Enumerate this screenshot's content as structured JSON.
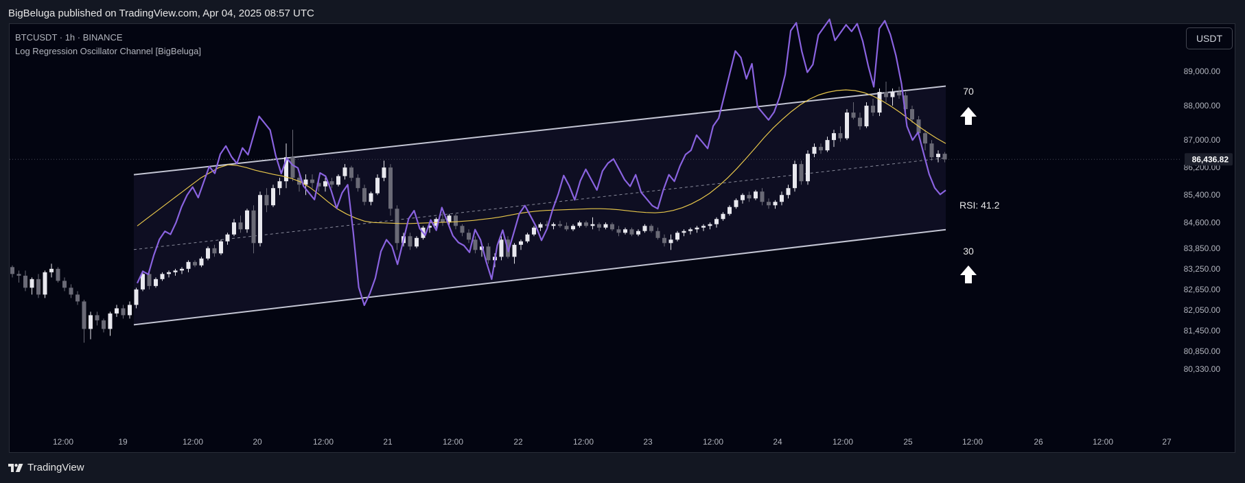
{
  "header": {
    "published": "BigBeluga published on TradingView.com, Apr 04, 2025 08:57 UTC"
  },
  "legend": {
    "symbol": "BTCUSDT · 1h · BINANCE",
    "indicator": "Log Regression Oscillator Channel [BigBeluga]"
  },
  "currency_button": "USDT",
  "footer": {
    "brand": "TradingView"
  },
  "colors": {
    "background": "#030511",
    "channel_fill": "#0f1025",
    "channel_line": "#c4c6d4",
    "rsi_line": "#8a63e0",
    "ma_line": "#e9c84b",
    "candle_up": "#e8e8ee",
    "candle_down": "#6a6a76",
    "price_label_bg": "#1c1f2b"
  },
  "chart_data": {
    "type": "candlestick",
    "symbol": "BTCUSDT",
    "interval": "1h",
    "exchange": "BINANCE",
    "ylim": [
      80000,
      89600
    ],
    "y_ticks": [
      89000,
      88000,
      87000,
      86200,
      85400,
      84600,
      83850,
      83250,
      82650,
      82050,
      81450,
      80850,
      80330
    ],
    "y_tick_labels": [
      "89,000.00",
      "88,000.00",
      "87,000.00",
      "86,200.00",
      "85,400.00",
      "84,600.00",
      "83,850.00",
      "83,250.00",
      "82,650.00",
      "82,050.00",
      "81,450.00",
      "80,850.00",
      "80,330.00"
    ],
    "last_price": 86436.82,
    "last_price_label": "86,436.82",
    "x_ticks": [
      "12:00",
      "19",
      "12:00",
      "20",
      "12:00",
      "21",
      "12:00",
      "22",
      "12:00",
      "23",
      "12:00",
      "24",
      "12:00",
      "25",
      "12:00",
      "26",
      "12:00",
      "27"
    ],
    "channel": {
      "upper": {
        "start": 85990,
        "end": 88570
      },
      "lower": {
        "start": 81620,
        "end": 84390
      },
      "mid": {
        "start": 83810,
        "end": 86480
      }
    },
    "oscillator_labels": {
      "upper": "70",
      "lower": "30",
      "rsi_label": "RSI:",
      "rsi_value": "41.2"
    },
    "candles": [
      {
        "o": 83300,
        "h": 83350,
        "l": 83000,
        "c": 83100
      },
      {
        "o": 83100,
        "h": 83200,
        "l": 82850,
        "c": 83050
      },
      {
        "o": 83050,
        "h": 83200,
        "l": 82600,
        "c": 82700
      },
      {
        "o": 82700,
        "h": 83000,
        "l": 82500,
        "c": 82950
      },
      {
        "o": 82950,
        "h": 83100,
        "l": 82400,
        "c": 82500
      },
      {
        "o": 82500,
        "h": 83200,
        "l": 82400,
        "c": 83150
      },
      {
        "o": 83150,
        "h": 83400,
        "l": 83000,
        "c": 83250
      },
      {
        "o": 83250,
        "h": 83300,
        "l": 82850,
        "c": 82900
      },
      {
        "o": 82900,
        "h": 83000,
        "l": 82600,
        "c": 82700
      },
      {
        "o": 82700,
        "h": 82800,
        "l": 82400,
        "c": 82500
      },
      {
        "o": 82500,
        "h": 82600,
        "l": 82200,
        "c": 82300
      },
      {
        "o": 82300,
        "h": 82350,
        "l": 81100,
        "c": 81500
      },
      {
        "o": 81500,
        "h": 82000,
        "l": 81200,
        "c": 81900
      },
      {
        "o": 81900,
        "h": 82000,
        "l": 81600,
        "c": 81750
      },
      {
        "o": 81750,
        "h": 81800,
        "l": 81400,
        "c": 81500
      },
      {
        "o": 81500,
        "h": 82000,
        "l": 81300,
        "c": 81950
      },
      {
        "o": 81950,
        "h": 82200,
        "l": 81850,
        "c": 82100
      },
      {
        "o": 82100,
        "h": 82200,
        "l": 81800,
        "c": 81900
      },
      {
        "o": 81900,
        "h": 82300,
        "l": 81800,
        "c": 82200
      },
      {
        "o": 82200,
        "h": 82700,
        "l": 82100,
        "c": 82650
      },
      {
        "o": 82650,
        "h": 83200,
        "l": 82600,
        "c": 83100
      },
      {
        "o": 83100,
        "h": 83150,
        "l": 82650,
        "c": 82750
      },
      {
        "o": 82750,
        "h": 83000,
        "l": 82700,
        "c": 82950
      },
      {
        "o": 82950,
        "h": 83150,
        "l": 82900,
        "c": 83100
      },
      {
        "o": 83100,
        "h": 83200,
        "l": 83000,
        "c": 83150
      },
      {
        "o": 83150,
        "h": 83250,
        "l": 83050,
        "c": 83200
      },
      {
        "o": 83200,
        "h": 83300,
        "l": 83100,
        "c": 83250
      },
      {
        "o": 83250,
        "h": 83500,
        "l": 83150,
        "c": 83450
      },
      {
        "o": 83450,
        "h": 83500,
        "l": 83300,
        "c": 83350
      },
      {
        "o": 83350,
        "h": 83600,
        "l": 83300,
        "c": 83550
      },
      {
        "o": 83550,
        "h": 83900,
        "l": 83500,
        "c": 83850
      },
      {
        "o": 83850,
        "h": 83950,
        "l": 83600,
        "c": 83700
      },
      {
        "o": 83700,
        "h": 84100,
        "l": 83650,
        "c": 84050
      },
      {
        "o": 84050,
        "h": 84300,
        "l": 83950,
        "c": 84250
      },
      {
        "o": 84250,
        "h": 84700,
        "l": 84200,
        "c": 84600
      },
      {
        "o": 84600,
        "h": 84800,
        "l": 84300,
        "c": 84400
      },
      {
        "o": 84400,
        "h": 85000,
        "l": 84300,
        "c": 84950
      },
      {
        "o": 84950,
        "h": 85100,
        "l": 83700,
        "c": 84000
      },
      {
        "o": 84000,
        "h": 85500,
        "l": 83900,
        "c": 85400
      },
      {
        "o": 85400,
        "h": 85600,
        "l": 84900,
        "c": 85100
      },
      {
        "o": 85100,
        "h": 85700,
        "l": 85050,
        "c": 85600
      },
      {
        "o": 85600,
        "h": 85900,
        "l": 85400,
        "c": 85800
      },
      {
        "o": 85800,
        "h": 86900,
        "l": 85600,
        "c": 86500
      },
      {
        "o": 86500,
        "h": 87300,
        "l": 85800,
        "c": 85900
      },
      {
        "o": 85900,
        "h": 86100,
        "l": 85500,
        "c": 85700
      },
      {
        "o": 85700,
        "h": 86000,
        "l": 85400,
        "c": 85850
      },
      {
        "o": 85850,
        "h": 86000,
        "l": 85600,
        "c": 85750
      },
      {
        "o": 85750,
        "h": 85900,
        "l": 85500,
        "c": 85650
      },
      {
        "o": 85650,
        "h": 85900,
        "l": 85500,
        "c": 85800
      },
      {
        "o": 85800,
        "h": 85900,
        "l": 85600,
        "c": 85700
      },
      {
        "o": 85700,
        "h": 86000,
        "l": 85650,
        "c": 85950
      },
      {
        "o": 85950,
        "h": 86300,
        "l": 85850,
        "c": 86200
      },
      {
        "o": 86200,
        "h": 86250,
        "l": 85800,
        "c": 85900
      },
      {
        "o": 85900,
        "h": 86000,
        "l": 85500,
        "c": 85600
      },
      {
        "o": 85600,
        "h": 85700,
        "l": 85100,
        "c": 85200
      },
      {
        "o": 85200,
        "h": 85500,
        "l": 85100,
        "c": 85450
      },
      {
        "o": 85450,
        "h": 86000,
        "l": 85400,
        "c": 85900
      },
      {
        "o": 85900,
        "h": 86400,
        "l": 85800,
        "c": 86200
      },
      {
        "o": 86200,
        "h": 86300,
        "l": 84800,
        "c": 85000
      },
      {
        "o": 85000,
        "h": 85100,
        "l": 83800,
        "c": 84000
      },
      {
        "o": 84000,
        "h": 84300,
        "l": 83900,
        "c": 84200
      },
      {
        "o": 84200,
        "h": 84300,
        "l": 83800,
        "c": 83900
      },
      {
        "o": 83900,
        "h": 84200,
        "l": 83850,
        "c": 84150
      },
      {
        "o": 84150,
        "h": 84500,
        "l": 84100,
        "c": 84450
      },
      {
        "o": 84450,
        "h": 84600,
        "l": 84300,
        "c": 84500
      },
      {
        "o": 84500,
        "h": 84750,
        "l": 84400,
        "c": 84700
      },
      {
        "o": 84700,
        "h": 84900,
        "l": 84500,
        "c": 84600
      },
      {
        "o": 84600,
        "h": 84850,
        "l": 84500,
        "c": 84800
      },
      {
        "o": 84800,
        "h": 84850,
        "l": 84400,
        "c": 84500
      },
      {
        "o": 84500,
        "h": 84550,
        "l": 84200,
        "c": 84300
      },
      {
        "o": 84300,
        "h": 84400,
        "l": 84000,
        "c": 84100
      },
      {
        "o": 84100,
        "h": 84200,
        "l": 83700,
        "c": 83800
      },
      {
        "o": 83800,
        "h": 84000,
        "l": 83600,
        "c": 83900
      },
      {
        "o": 83900,
        "h": 84000,
        "l": 83400,
        "c": 83500
      },
      {
        "o": 83500,
        "h": 83700,
        "l": 83300,
        "c": 83600
      },
      {
        "o": 83600,
        "h": 84200,
        "l": 83500,
        "c": 84100
      },
      {
        "o": 84100,
        "h": 84200,
        "l": 83550,
        "c": 83600
      },
      {
        "o": 83600,
        "h": 84000,
        "l": 83400,
        "c": 83950
      },
      {
        "o": 83950,
        "h": 84100,
        "l": 83800,
        "c": 84050
      },
      {
        "o": 84050,
        "h": 84300,
        "l": 84000,
        "c": 84250
      },
      {
        "o": 84250,
        "h": 84500,
        "l": 84200,
        "c": 84450
      },
      {
        "o": 84450,
        "h": 84600,
        "l": 84350,
        "c": 84550
      },
      {
        "o": 84550,
        "h": 84650,
        "l": 84400,
        "c": 84500
      },
      {
        "o": 84500,
        "h": 84600,
        "l": 84400,
        "c": 84550
      },
      {
        "o": 84550,
        "h": 84650,
        "l": 84450,
        "c": 84500
      },
      {
        "o": 84500,
        "h": 84600,
        "l": 84350,
        "c": 84400
      },
      {
        "o": 84400,
        "h": 84550,
        "l": 84350,
        "c": 84500
      },
      {
        "o": 84500,
        "h": 84650,
        "l": 84450,
        "c": 84600
      },
      {
        "o": 84600,
        "h": 84650,
        "l": 84450,
        "c": 84500
      },
      {
        "o": 84500,
        "h": 84750,
        "l": 84400,
        "c": 84550
      },
      {
        "o": 84550,
        "h": 84600,
        "l": 84350,
        "c": 84450
      },
      {
        "o": 84450,
        "h": 84600,
        "l": 84400,
        "c": 84550
      },
      {
        "o": 84550,
        "h": 84600,
        "l": 84350,
        "c": 84400
      },
      {
        "o": 84400,
        "h": 84500,
        "l": 84200,
        "c": 84300
      },
      {
        "o": 84300,
        "h": 84450,
        "l": 84250,
        "c": 84400
      },
      {
        "o": 84400,
        "h": 84450,
        "l": 84200,
        "c": 84250
      },
      {
        "o": 84250,
        "h": 84400,
        "l": 84200,
        "c": 84350
      },
      {
        "o": 84350,
        "h": 84550,
        "l": 84300,
        "c": 84500
      },
      {
        "o": 84500,
        "h": 84550,
        "l": 84300,
        "c": 84350
      },
      {
        "o": 84350,
        "h": 84450,
        "l": 84100,
        "c": 84150
      },
      {
        "o": 84150,
        "h": 84250,
        "l": 83900,
        "c": 84000
      },
      {
        "o": 84000,
        "h": 84250,
        "l": 83800,
        "c": 84100
      },
      {
        "o": 84100,
        "h": 84350,
        "l": 84050,
        "c": 84300
      },
      {
        "o": 84300,
        "h": 84400,
        "l": 84200,
        "c": 84350
      },
      {
        "o": 84350,
        "h": 84450,
        "l": 84250,
        "c": 84400
      },
      {
        "o": 84400,
        "h": 84500,
        "l": 84300,
        "c": 84450
      },
      {
        "o": 84450,
        "h": 84550,
        "l": 84350,
        "c": 84500
      },
      {
        "o": 84500,
        "h": 84600,
        "l": 84400,
        "c": 84550
      },
      {
        "o": 84550,
        "h": 84750,
        "l": 84450,
        "c": 84700
      },
      {
        "o": 84700,
        "h": 84900,
        "l": 84650,
        "c": 84850
      },
      {
        "o": 84850,
        "h": 85100,
        "l": 84800,
        "c": 85050
      },
      {
        "o": 85050,
        "h": 85300,
        "l": 85000,
        "c": 85250
      },
      {
        "o": 85250,
        "h": 85450,
        "l": 85150,
        "c": 85400
      },
      {
        "o": 85400,
        "h": 85500,
        "l": 85200,
        "c": 85300
      },
      {
        "o": 85300,
        "h": 85550,
        "l": 85250,
        "c": 85500
      },
      {
        "o": 85500,
        "h": 85600,
        "l": 85100,
        "c": 85200
      },
      {
        "o": 85200,
        "h": 85300,
        "l": 85000,
        "c": 85100
      },
      {
        "o": 85100,
        "h": 85250,
        "l": 85000,
        "c": 85200
      },
      {
        "o": 85200,
        "h": 85500,
        "l": 85100,
        "c": 85400
      },
      {
        "o": 85400,
        "h": 85700,
        "l": 85300,
        "c": 85600
      },
      {
        "o": 85600,
        "h": 86400,
        "l": 85500,
        "c": 86300
      },
      {
        "o": 86300,
        "h": 86400,
        "l": 85700,
        "c": 85800
      },
      {
        "o": 85800,
        "h": 86700,
        "l": 85700,
        "c": 86600
      },
      {
        "o": 86600,
        "h": 86900,
        "l": 86500,
        "c": 86800
      },
      {
        "o": 86800,
        "h": 86900,
        "l": 86600,
        "c": 86700
      },
      {
        "o": 86700,
        "h": 87100,
        "l": 86650,
        "c": 87000
      },
      {
        "o": 87000,
        "h": 87300,
        "l": 86800,
        "c": 87200
      },
      {
        "o": 87200,
        "h": 87400,
        "l": 86950,
        "c": 87050
      },
      {
        "o": 87050,
        "h": 87900,
        "l": 87000,
        "c": 87800
      },
      {
        "o": 87800,
        "h": 88100,
        "l": 87600,
        "c": 87650
      },
      {
        "o": 87650,
        "h": 87800,
        "l": 87300,
        "c": 87400
      },
      {
        "o": 87400,
        "h": 88100,
        "l": 87350,
        "c": 88000
      },
      {
        "o": 88000,
        "h": 88200,
        "l": 87700,
        "c": 87800
      },
      {
        "o": 87800,
        "h": 88500,
        "l": 87700,
        "c": 88400
      },
      {
        "o": 88400,
        "h": 88700,
        "l": 88100,
        "c": 88250
      },
      {
        "o": 88250,
        "h": 88500,
        "l": 88000,
        "c": 88400
      },
      {
        "o": 88400,
        "h": 88550,
        "l": 88200,
        "c": 88300
      },
      {
        "o": 88300,
        "h": 88400,
        "l": 87800,
        "c": 87900
      },
      {
        "o": 87900,
        "h": 88000,
        "l": 87500,
        "c": 87600
      },
      {
        "o": 87600,
        "h": 87700,
        "l": 87100,
        "c": 87200
      },
      {
        "o": 87200,
        "h": 87300,
        "l": 86700,
        "c": 86900
      },
      {
        "o": 86900,
        "h": 87000,
        "l": 86400,
        "c": 86500
      },
      {
        "o": 86500,
        "h": 86700,
        "l": 86350,
        "c": 86600
      },
      {
        "o": 86600,
        "h": 86650,
        "l": 86350,
        "c": 86437
      }
    ],
    "rsi": [
      41,
      44,
      43,
      48,
      52,
      54,
      53,
      56,
      60,
      63,
      65,
      62,
      66,
      70,
      68,
      73,
      75,
      72,
      70,
      74,
      72,
      77,
      82,
      80,
      78,
      71,
      66,
      70,
      68,
      67,
      62,
      60,
      58,
      65,
      64,
      60,
      55,
      59,
      61,
      48,
      33,
      28,
      31,
      35,
      42,
      45,
      43,
      38,
      44,
      50,
      52,
      47,
      45,
      49,
      46,
      52,
      48,
      44,
      42,
      41,
      39,
      45,
      42,
      36,
      31,
      40,
      44,
      38,
      43,
      48,
      50,
      47,
      44,
      40,
      43,
      48,
      52,
      57,
      54,
      50,
      55,
      58,
      55,
      52,
      57,
      59,
      60,
      57,
      54,
      52,
      55,
      50,
      48,
      46,
      45,
      50,
      54,
      52,
      56,
      59,
      60,
      64,
      62,
      60,
      66,
      68,
      74,
      80,
      86,
      84,
      78,
      82,
      70,
      68,
      66,
      68,
      72,
      78,
      90,
      92,
      84,
      78,
      80,
      88,
      90,
      92,
      86,
      88,
      90,
      88,
      90,
      85,
      78,
      72,
      88,
      90,
      86,
      80,
      72,
      60,
      56,
      58,
      52,
      46,
      42,
      40,
      41
    ],
    "ma": [
      84500,
      84700,
      84900,
      85100,
      85300,
      85500,
      85700,
      85900,
      86050,
      86200,
      86280,
      86260,
      86200,
      86120,
      86060,
      86000,
      85950,
      85880,
      85780,
      85620,
      85420,
      85200,
      85000,
      84850,
      84730,
      84640,
      84600,
      84590,
      84580,
      84570,
      84570,
      84580,
      84590,
      84600,
      84610,
      84620,
      84640,
      84660,
      84690,
      84720,
      84760,
      84810,
      84860,
      84900,
      84930,
      84950,
      84960,
      84970,
      84980,
      84990,
      85000,
      85000,
      84990,
      84970,
      84940,
      84910,
      84890,
      84880,
      84900,
      84950,
      85030,
      85140,
      85280,
      85450,
      85660,
      85900,
      86170,
      86460,
      86760,
      87070,
      87350,
      87600,
      87830,
      88030,
      88190,
      88310,
      88390,
      88440,
      88460,
      88440,
      88380,
      88280,
      88140,
      87980,
      87800,
      87600,
      87400,
      87220,
      87050,
      86900
    ]
  }
}
